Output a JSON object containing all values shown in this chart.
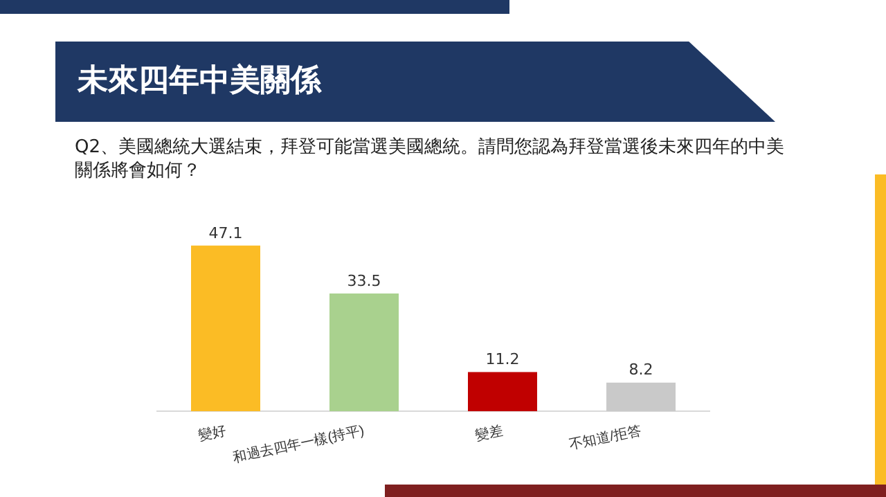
{
  "chart_data": {
    "type": "bar",
    "title": "未來四年中美關係",
    "subtitle": "Q2、美國總統大選結束，拜登可能當選美國總統。請問您認為拜登當選後未來四年的中美關係將會如何？",
    "categories": [
      "變好",
      "和過去四年一樣(持平)",
      "變差",
      "不知道/拒答"
    ],
    "values": [
      47.1,
      33.5,
      11.2,
      8.2
    ],
    "colors": [
      "#fbbc25",
      "#a9d18e",
      "#c00000",
      "#c9c9c9"
    ],
    "data_labels": true,
    "grid": false,
    "legend": false,
    "tick_labels": "x"
  }
}
